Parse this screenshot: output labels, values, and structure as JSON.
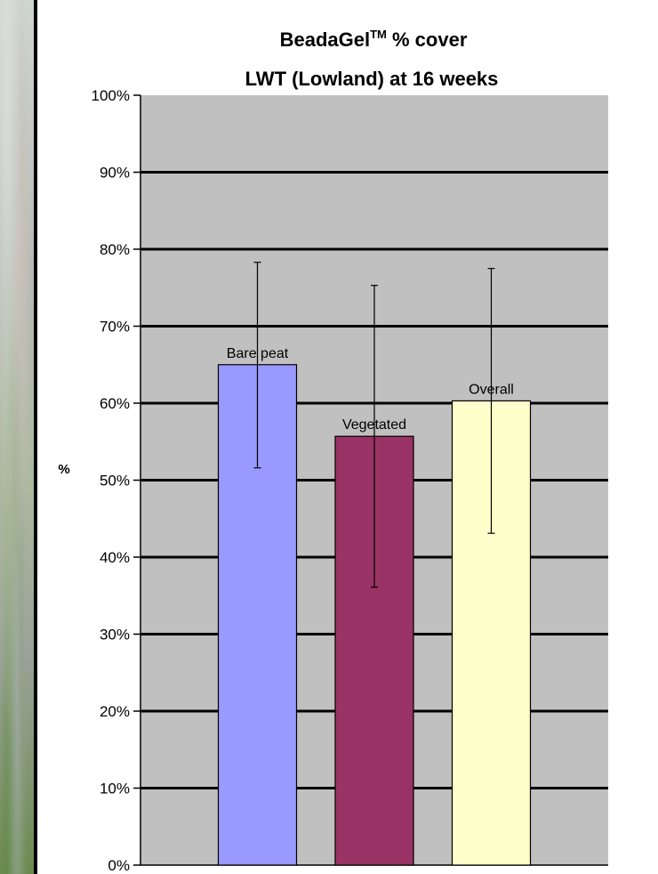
{
  "chart_data": {
    "type": "bar",
    "title_main": "BeadaGel",
    "title_sup": "TM",
    "title_rest": " % cover",
    "subtitle": "LWT (Lowland) at 16 weeks",
    "ylabel": "%",
    "ylim": [
      0,
      100
    ],
    "yticks": [
      "0%",
      "10%",
      "20%",
      "30%",
      "40%",
      "50%",
      "60%",
      "70%",
      "80%",
      "90%",
      "100%"
    ],
    "grid": true,
    "categories": [
      "Bare peat",
      "Vegetated",
      "Overall"
    ],
    "values": [
      65.0,
      55.7,
      60.3
    ],
    "error_low": [
      51.6,
      36.1,
      43.1
    ],
    "error_high": [
      78.3,
      75.3,
      77.5
    ],
    "colors": [
      "#9999ff",
      "#993366",
      "#ffffcc"
    ],
    "plot_background": "#c0c0c0"
  }
}
